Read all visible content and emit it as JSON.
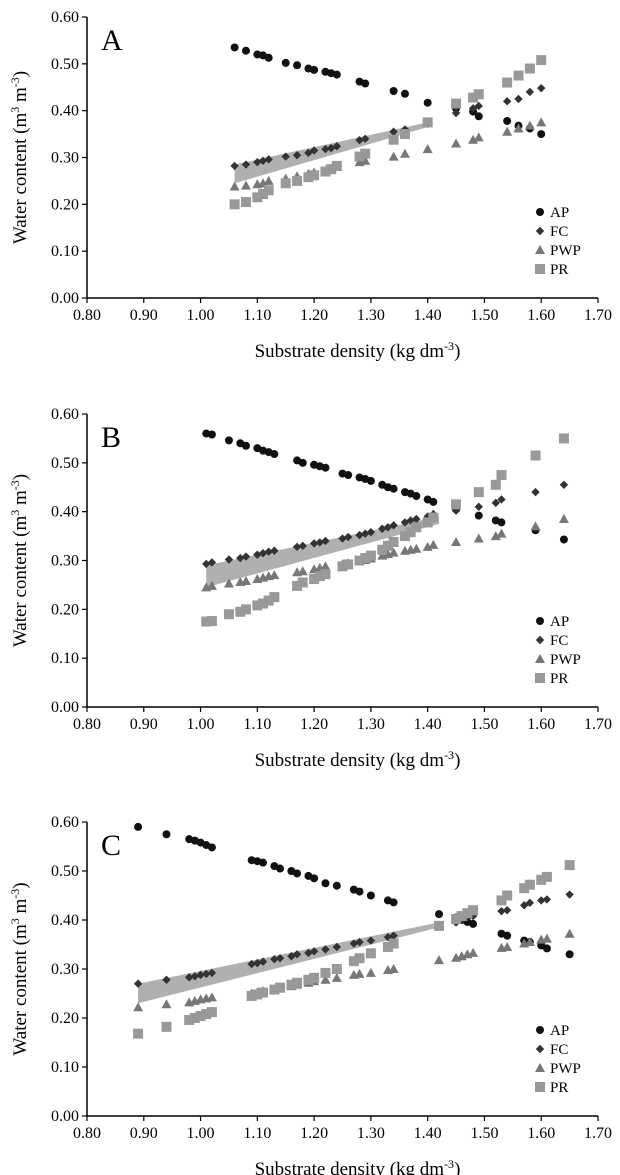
{
  "chart_data": [
    {
      "type": "scatter",
      "panel_label": "A",
      "xlabel": "Substrate density (kg dm",
      "xlabel_sup": "-3",
      "xlabel_end": ")",
      "ylabel": "Water content (m",
      "ylabel_sup1": "3",
      "ylabel_mid": " m",
      "ylabel_sup2": "-3",
      "ylabel_end": ")",
      "xlim": [
        0.8,
        1.7
      ],
      "ylim": [
        0.0,
        0.6
      ],
      "xticks": [
        "0.80",
        "0.90",
        "1.00",
        "1.10",
        "1.20",
        "1.30",
        "1.40",
        "1.50",
        "1.60",
        "1.70"
      ],
      "yticks": [
        "0.00",
        "0.10",
        "0.20",
        "0.30",
        "0.40",
        "0.50",
        "0.60"
      ],
      "legend_position": "bottom-right",
      "shaded_band": {
        "x_start": 1.06,
        "x_end": 1.4,
        "lower_start": 0.245,
        "upper_start": 0.285,
        "lower_end": 0.365,
        "upper_end": 0.375
      },
      "series": [
        {
          "name": "AP",
          "marker": "circle",
          "color": "#111111",
          "x": [
            1.06,
            1.08,
            1.1,
            1.11,
            1.12,
            1.15,
            1.17,
            1.19,
            1.2,
            1.22,
            1.23,
            1.24,
            1.28,
            1.29,
            1.34,
            1.36,
            1.4,
            1.45,
            1.48,
            1.49,
            1.54,
            1.56,
            1.58,
            1.6
          ],
          "y": [
            0.535,
            0.528,
            0.52,
            0.518,
            0.513,
            0.502,
            0.497,
            0.49,
            0.487,
            0.483,
            0.48,
            0.477,
            0.462,
            0.458,
            0.442,
            0.436,
            0.417,
            0.405,
            0.398,
            0.388,
            0.378,
            0.368,
            0.362,
            0.35
          ]
        },
        {
          "name": "FC",
          "marker": "diamond",
          "color": "#333333",
          "x": [
            1.06,
            1.08,
            1.1,
            1.11,
            1.12,
            1.15,
            1.17,
            1.19,
            1.2,
            1.22,
            1.23,
            1.24,
            1.28,
            1.29,
            1.34,
            1.36,
            1.4,
            1.45,
            1.48,
            1.49,
            1.54,
            1.56,
            1.58,
            1.6
          ],
          "y": [
            0.282,
            0.285,
            0.29,
            0.293,
            0.296,
            0.302,
            0.305,
            0.31,
            0.315,
            0.318,
            0.32,
            0.324,
            0.337,
            0.34,
            0.355,
            0.36,
            0.372,
            0.395,
            0.405,
            0.41,
            0.42,
            0.425,
            0.44,
            0.448
          ]
        },
        {
          "name": "PWP",
          "marker": "triangle",
          "color": "#777777",
          "x": [
            1.06,
            1.08,
            1.1,
            1.11,
            1.12,
            1.15,
            1.17,
            1.19,
            1.2,
            1.22,
            1.23,
            1.24,
            1.28,
            1.29,
            1.34,
            1.36,
            1.4,
            1.45,
            1.48,
            1.49,
            1.54,
            1.56,
            1.58,
            1.6
          ],
          "y": [
            0.238,
            0.24,
            0.243,
            0.245,
            0.25,
            0.255,
            0.26,
            0.265,
            0.268,
            0.272,
            0.276,
            0.28,
            0.29,
            0.293,
            0.302,
            0.308,
            0.318,
            0.33,
            0.338,
            0.343,
            0.355,
            0.362,
            0.368,
            0.375
          ]
        },
        {
          "name": "PR",
          "marker": "square",
          "color": "#999999",
          "x": [
            1.06,
            1.08,
            1.1,
            1.11,
            1.12,
            1.15,
            1.17,
            1.19,
            1.2,
            1.22,
            1.23,
            1.24,
            1.28,
            1.29,
            1.34,
            1.36,
            1.4,
            1.45,
            1.48,
            1.49,
            1.54,
            1.56,
            1.58,
            1.6
          ],
          "y": [
            0.2,
            0.205,
            0.215,
            0.222,
            0.23,
            0.245,
            0.25,
            0.258,
            0.262,
            0.27,
            0.275,
            0.282,
            0.302,
            0.308,
            0.338,
            0.35,
            0.375,
            0.415,
            0.428,
            0.435,
            0.46,
            0.475,
            0.49,
            0.508
          ]
        }
      ]
    },
    {
      "type": "scatter",
      "panel_label": "B",
      "xlabel": "Substrate density (kg dm",
      "xlabel_sup": "-3",
      "xlabel_end": ")",
      "ylabel": "Water content (m",
      "ylabel_sup1": "3",
      "ylabel_mid": " m",
      "ylabel_sup2": "-3",
      "ylabel_end": ")",
      "xlim": [
        0.8,
        1.7
      ],
      "ylim": [
        0.0,
        0.6
      ],
      "xticks": [
        "0.80",
        "0.90",
        "1.00",
        "1.10",
        "1.20",
        "1.30",
        "1.40",
        "1.50",
        "1.60",
        "1.70"
      ],
      "yticks": [
        "0.00",
        "0.10",
        "0.20",
        "0.30",
        "0.40",
        "0.50",
        "0.60"
      ],
      "legend_position": "bottom-right",
      "shaded_band": {
        "x_start": 1.01,
        "x_end": 1.42,
        "lower_start": 0.245,
        "upper_start": 0.29,
        "lower_end": 0.375,
        "upper_end": 0.39
      },
      "series": [
        {
          "name": "AP",
          "marker": "circle",
          "color": "#111111",
          "x": [
            1.01,
            1.02,
            1.05,
            1.07,
            1.08,
            1.1,
            1.11,
            1.12,
            1.13,
            1.17,
            1.18,
            1.2,
            1.21,
            1.22,
            1.25,
            1.26,
            1.28,
            1.29,
            1.3,
            1.32,
            1.33,
            1.34,
            1.36,
            1.37,
            1.38,
            1.4,
            1.41,
            1.45,
            1.49,
            1.52,
            1.53,
            1.59,
            1.64
          ],
          "y": [
            0.56,
            0.558,
            0.546,
            0.54,
            0.535,
            0.53,
            0.525,
            0.522,
            0.518,
            0.505,
            0.5,
            0.496,
            0.493,
            0.49,
            0.478,
            0.475,
            0.47,
            0.467,
            0.463,
            0.455,
            0.45,
            0.447,
            0.44,
            0.437,
            0.432,
            0.425,
            0.42,
            0.405,
            0.392,
            0.382,
            0.378,
            0.362,
            0.343
          ]
        },
        {
          "name": "FC",
          "marker": "diamond",
          "color": "#333333",
          "x": [
            1.01,
            1.02,
            1.05,
            1.07,
            1.08,
            1.1,
            1.11,
            1.12,
            1.13,
            1.17,
            1.18,
            1.2,
            1.21,
            1.22,
            1.25,
            1.26,
            1.28,
            1.29,
            1.3,
            1.32,
            1.33,
            1.34,
            1.36,
            1.37,
            1.38,
            1.4,
            1.41,
            1.45,
            1.49,
            1.52,
            1.53,
            1.59,
            1.64
          ],
          "y": [
            0.293,
            0.296,
            0.302,
            0.305,
            0.308,
            0.312,
            0.315,
            0.318,
            0.32,
            0.328,
            0.33,
            0.335,
            0.337,
            0.34,
            0.345,
            0.348,
            0.352,
            0.355,
            0.358,
            0.365,
            0.368,
            0.372,
            0.378,
            0.382,
            0.385,
            0.39,
            0.395,
            0.402,
            0.41,
            0.418,
            0.425,
            0.44,
            0.455
          ]
        },
        {
          "name": "PWP",
          "marker": "triangle",
          "color": "#777777",
          "x": [
            1.01,
            1.02,
            1.05,
            1.07,
            1.08,
            1.1,
            1.11,
            1.12,
            1.13,
            1.17,
            1.18,
            1.2,
            1.21,
            1.22,
            1.25,
            1.26,
            1.28,
            1.29,
            1.3,
            1.32,
            1.33,
            1.34,
            1.36,
            1.37,
            1.38,
            1.4,
            1.41,
            1.45,
            1.49,
            1.52,
            1.53,
            1.59,
            1.64
          ],
          "y": [
            0.245,
            0.248,
            0.253,
            0.256,
            0.258,
            0.262,
            0.265,
            0.268,
            0.27,
            0.276,
            0.278,
            0.282,
            0.285,
            0.288,
            0.292,
            0.295,
            0.298,
            0.301,
            0.304,
            0.31,
            0.313,
            0.316,
            0.32,
            0.322,
            0.324,
            0.328,
            0.332,
            0.338,
            0.345,
            0.35,
            0.355,
            0.37,
            0.385
          ]
        },
        {
          "name": "PR",
          "marker": "square",
          "color": "#999999",
          "x": [
            1.01,
            1.02,
            1.05,
            1.07,
            1.08,
            1.1,
            1.11,
            1.12,
            1.13,
            1.17,
            1.18,
            1.2,
            1.21,
            1.22,
            1.25,
            1.26,
            1.28,
            1.29,
            1.3,
            1.32,
            1.33,
            1.34,
            1.36,
            1.37,
            1.38,
            1.4,
            1.41,
            1.45,
            1.49,
            1.52,
            1.53,
            1.59,
            1.64
          ],
          "y": [
            0.175,
            0.176,
            0.19,
            0.195,
            0.2,
            0.208,
            0.212,
            0.218,
            0.225,
            0.248,
            0.255,
            0.262,
            0.268,
            0.272,
            0.288,
            0.292,
            0.3,
            0.305,
            0.31,
            0.322,
            0.33,
            0.338,
            0.35,
            0.358,
            0.368,
            0.378,
            0.388,
            0.415,
            0.44,
            0.455,
            0.475,
            0.515,
            0.55
          ]
        }
      ]
    },
    {
      "type": "scatter",
      "panel_label": "C",
      "xlabel": "Substrate density (kg dm",
      "xlabel_sup": "-3",
      "xlabel_end": ")",
      "ylabel": "Water content (m",
      "ylabel_sup1": "3",
      "ylabel_mid": " m",
      "ylabel_sup2": "-3",
      "ylabel_end": ")",
      "xlim": [
        0.8,
        1.7
      ],
      "ylim": [
        0.0,
        0.6
      ],
      "xticks": [
        "0.80",
        "0.90",
        "1.00",
        "1.10",
        "1.20",
        "1.30",
        "1.40",
        "1.50",
        "1.60",
        "1.70"
      ],
      "yticks": [
        "0.00",
        "0.10",
        "0.20",
        "0.30",
        "0.40",
        "0.50",
        "0.60"
      ],
      "legend_position": "bottom-right",
      "shaded_band": {
        "x_start": 0.89,
        "x_end": 1.42,
        "lower_start": 0.23,
        "upper_start": 0.27,
        "lower_end": 0.385,
        "upper_end": 0.395
      },
      "series": [
        {
          "name": "AP",
          "marker": "circle",
          "color": "#111111",
          "x": [
            0.89,
            0.94,
            0.98,
            0.99,
            1.0,
            1.01,
            1.02,
            1.09,
            1.1,
            1.11,
            1.13,
            1.14,
            1.16,
            1.17,
            1.19,
            1.2,
            1.22,
            1.24,
            1.27,
            1.28,
            1.3,
            1.33,
            1.34,
            1.42,
            1.45,
            1.46,
            1.47,
            1.48,
            1.53,
            1.54,
            1.57,
            1.58,
            1.6,
            1.61,
            1.65
          ],
          "y": [
            0.59,
            0.575,
            0.565,
            0.562,
            0.558,
            0.553,
            0.548,
            0.522,
            0.52,
            0.517,
            0.51,
            0.505,
            0.5,
            0.495,
            0.49,
            0.485,
            0.475,
            0.47,
            0.462,
            0.458,
            0.45,
            0.44,
            0.436,
            0.412,
            0.405,
            0.4,
            0.396,
            0.392,
            0.372,
            0.368,
            0.358,
            0.355,
            0.348,
            0.342,
            0.33
          ]
        },
        {
          "name": "FC",
          "marker": "diamond",
          "color": "#333333",
          "x": [
            0.89,
            0.94,
            0.98,
            0.99,
            1.0,
            1.01,
            1.02,
            1.09,
            1.1,
            1.11,
            1.13,
            1.14,
            1.16,
            1.17,
            1.19,
            1.2,
            1.22,
            1.24,
            1.27,
            1.28,
            1.3,
            1.33,
            1.34,
            1.42,
            1.45,
            1.46,
            1.47,
            1.48,
            1.53,
            1.54,
            1.57,
            1.58,
            1.6,
            1.61,
            1.65
          ],
          "y": [
            0.27,
            0.278,
            0.283,
            0.285,
            0.288,
            0.29,
            0.292,
            0.31,
            0.312,
            0.315,
            0.32,
            0.322,
            0.326,
            0.33,
            0.333,
            0.336,
            0.34,
            0.345,
            0.352,
            0.355,
            0.358,
            0.365,
            0.368,
            0.39,
            0.395,
            0.4,
            0.405,
            0.408,
            0.418,
            0.42,
            0.43,
            0.435,
            0.44,
            0.442,
            0.452
          ]
        },
        {
          "name": "PWP",
          "marker": "triangle",
          "color": "#777777",
          "x": [
            0.89,
            0.94,
            0.98,
            0.99,
            1.0,
            1.01,
            1.02,
            1.09,
            1.1,
            1.11,
            1.13,
            1.14,
            1.16,
            1.17,
            1.19,
            1.2,
            1.22,
            1.24,
            1.27,
            1.28,
            1.3,
            1.33,
            1.34,
            1.42,
            1.45,
            1.46,
            1.47,
            1.48,
            1.53,
            1.54,
            1.57,
            1.58,
            1.6,
            1.61,
            1.65
          ],
          "y": [
            0.222,
            0.228,
            0.232,
            0.235,
            0.238,
            0.24,
            0.242,
            0.25,
            0.252,
            0.255,
            0.258,
            0.26,
            0.265,
            0.268,
            0.272,
            0.275,
            0.278,
            0.282,
            0.288,
            0.29,
            0.292,
            0.298,
            0.3,
            0.318,
            0.323,
            0.326,
            0.33,
            0.333,
            0.343,
            0.345,
            0.352,
            0.355,
            0.36,
            0.362,
            0.372
          ]
        },
        {
          "name": "PR",
          "marker": "square",
          "color": "#999999",
          "x": [
            0.89,
            0.94,
            0.98,
            0.99,
            1.0,
            1.01,
            1.02,
            1.09,
            1.1,
            1.11,
            1.13,
            1.14,
            1.16,
            1.17,
            1.19,
            1.2,
            1.22,
            1.24,
            1.27,
            1.28,
            1.3,
            1.33,
            1.34,
            1.42,
            1.45,
            1.46,
            1.47,
            1.48,
            1.53,
            1.54,
            1.57,
            1.58,
            1.6,
            1.61,
            1.65
          ],
          "y": [
            0.168,
            0.182,
            0.196,
            0.2,
            0.204,
            0.208,
            0.212,
            0.245,
            0.248,
            0.252,
            0.258,
            0.262,
            0.268,
            0.272,
            0.278,
            0.282,
            0.292,
            0.3,
            0.316,
            0.322,
            0.332,
            0.345,
            0.352,
            0.388,
            0.402,
            0.408,
            0.414,
            0.42,
            0.44,
            0.45,
            0.465,
            0.472,
            0.482,
            0.488,
            0.512
          ]
        }
      ]
    }
  ]
}
